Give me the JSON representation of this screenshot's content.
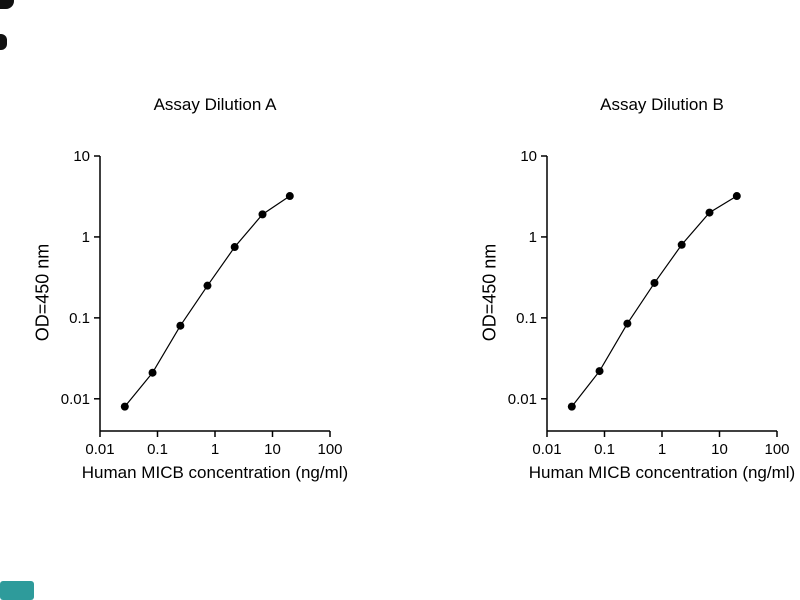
{
  "page": {
    "background": "#ffffff"
  },
  "artifacts": {
    "corner_mark_color": "#111111",
    "watermark_color": "#2e9b9b"
  },
  "chart_data": [
    {
      "type": "line",
      "title": "Assay Dilution A",
      "xlabel": "Human MICB concentration (ng/ml)",
      "ylabel": "OD=450 nm",
      "xscale": "log",
      "yscale": "log",
      "xlim": [
        0.01,
        100
      ],
      "ylim": [
        0.004,
        10
      ],
      "xticks": [
        0.01,
        0.1,
        1,
        10,
        100
      ],
      "yticks": [
        0.01,
        0.1,
        1,
        10
      ],
      "x": [
        0.027,
        0.082,
        0.25,
        0.74,
        2.2,
        6.7,
        20
      ],
      "y": [
        0.008,
        0.021,
        0.08,
        0.25,
        0.75,
        1.9,
        3.2
      ],
      "marker": "circle",
      "marker_color": "#000000",
      "line_color": "#000000",
      "grid": false
    },
    {
      "type": "line",
      "title": "Assay Dilution B",
      "xlabel": "Human MICB concentration (ng/ml)",
      "ylabel": "OD=450 nm",
      "xscale": "log",
      "yscale": "log",
      "xlim": [
        0.01,
        100
      ],
      "ylim": [
        0.004,
        10
      ],
      "xticks": [
        0.01,
        0.1,
        1,
        10,
        100
      ],
      "yticks": [
        0.01,
        0.1,
        1,
        10
      ],
      "x": [
        0.027,
        0.082,
        0.25,
        0.74,
        2.2,
        6.7,
        20
      ],
      "y": [
        0.008,
        0.022,
        0.085,
        0.27,
        0.8,
        2.0,
        3.2
      ],
      "marker": "circle",
      "marker_color": "#000000",
      "line_color": "#000000",
      "grid": false
    }
  ]
}
